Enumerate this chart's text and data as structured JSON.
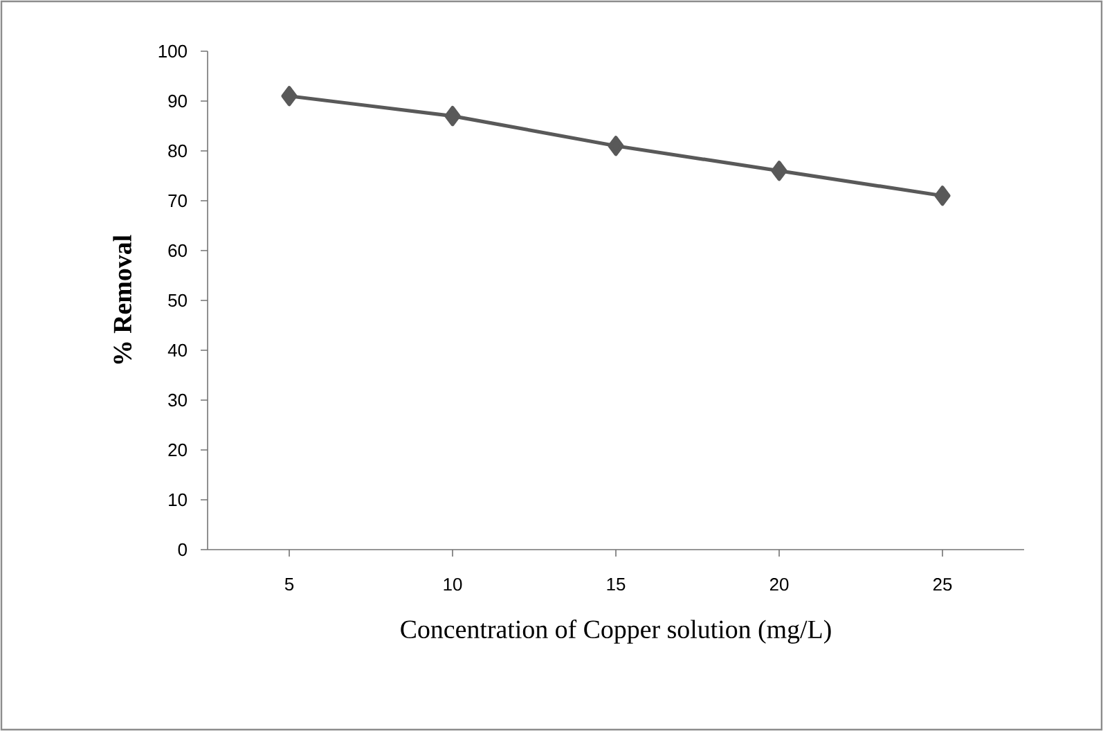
{
  "chart_data": {
    "type": "line",
    "xlabel": "Concentration of Copper solution (mg/L)",
    "ylabel": "% Removal",
    "categories": [
      "5",
      "10",
      "15",
      "20",
      "25"
    ],
    "series": [
      {
        "color": "#595959",
        "values": [
          91,
          87,
          81,
          76,
          71
        ]
      }
    ],
    "ylim": [
      0,
      100
    ],
    "yticks": [
      0,
      10,
      20,
      30,
      40,
      50,
      60,
      70,
      80,
      90,
      100
    ],
    "marker": "diamond",
    "line_style": "solid",
    "grid": false
  }
}
